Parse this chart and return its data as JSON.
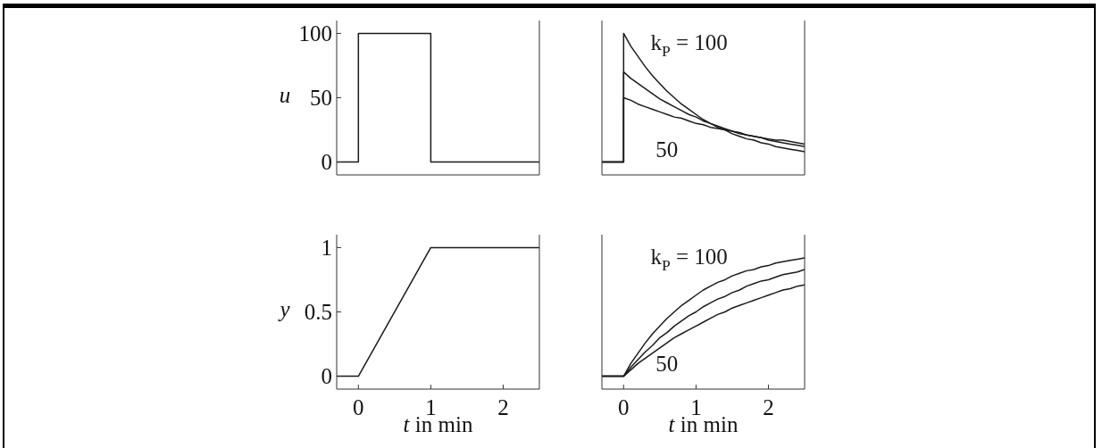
{
  "chart_data": [
    {
      "type": "step",
      "ylabel": "u",
      "x": [
        -0.3,
        0,
        1,
        2.5
      ],
      "series": [
        {
          "color": "#1a1a1a",
          "values": [
            0,
            100,
            0,
            0
          ]
        }
      ],
      "xlim": [
        -0.3,
        2.5
      ],
      "xticks": [
        0,
        1,
        2
      ],
      "ylim": [
        -10,
        110
      ],
      "yticks": [
        0,
        50,
        100
      ],
      "tick_labels": "y"
    },
    {
      "type": "line",
      "tick_labels": false,
      "xlim": [
        -0.3,
        2.5
      ],
      "xticks": [
        0,
        1,
        2
      ],
      "ylim": [
        -10,
        110
      ],
      "yticks": [
        0,
        50,
        100
      ],
      "series": [
        {
          "name": "k$_{P}$ = 100",
          "color": "#1a1a1a",
          "x": [
            -0.3,
            0,
            0,
            0.1,
            0.2,
            0.3,
            0.4,
            0.5,
            0.6,
            0.7,
            0.8,
            0.9,
            1,
            1.1,
            1.2,
            1.3,
            1.4,
            1.5,
            1.6,
            1.7,
            1.8,
            1.9,
            2,
            2.1,
            2.2,
            2.3,
            2.4,
            2.5
          ],
          "values": [
            0,
            0,
            100,
            90,
            82,
            74,
            67,
            61,
            55,
            50,
            45,
            41,
            37,
            33,
            30,
            27,
            25,
            22,
            20,
            18,
            17,
            15,
            14,
            12,
            11,
            10,
            9,
            8
          ]
        },
        {
          "color": "#1a1a1a",
          "x": [
            -0.3,
            0,
            0,
            0.1,
            0.2,
            0.3,
            0.4,
            0.5,
            0.6,
            0.7,
            0.8,
            0.9,
            1,
            1.1,
            1.2,
            1.3,
            1.4,
            1.5,
            1.6,
            1.7,
            1.8,
            1.9,
            2,
            2.1,
            2.2,
            2.3,
            2.4,
            2.5
          ],
          "values": [
            0,
            0,
            70,
            65,
            61,
            57,
            53,
            49,
            46,
            43,
            40,
            37,
            35,
            32,
            30,
            28,
            26,
            24,
            23,
            21,
            20,
            19,
            17,
            16,
            15,
            14,
            13,
            12
          ]
        },
        {
          "name": "50",
          "color": "#1a1a1a",
          "x": [
            -0.3,
            0,
            0,
            0.1,
            0.2,
            0.3,
            0.4,
            0.5,
            0.6,
            0.7,
            0.8,
            0.9,
            1,
            1.1,
            1.2,
            1.3,
            1.4,
            1.5,
            1.6,
            1.7,
            1.8,
            1.9,
            2,
            2.1,
            2.2,
            2.3,
            2.4,
            2.5
          ],
          "values": [
            0,
            0,
            50,
            48,
            45,
            43,
            41,
            39,
            37,
            35,
            34,
            32,
            30,
            29,
            27,
            26,
            25,
            24,
            22,
            21,
            20,
            19,
            18,
            17,
            17,
            16,
            15,
            14
          ]
        }
      ]
    },
    {
      "type": "line",
      "ylabel": "y",
      "xlabel": "t in min",
      "x": [
        -0.3,
        0,
        1,
        2.5
      ],
      "series": [
        {
          "color": "#1a1a1a",
          "values": [
            0,
            0,
            1,
            1
          ]
        }
      ],
      "xlim": [
        -0.3,
        2.5
      ],
      "xticks": [
        0,
        1,
        2
      ],
      "ylim": [
        -0.1,
        1.1
      ],
      "yticks": [
        0,
        0.5,
        1
      ]
    },
    {
      "type": "line",
      "xlabel": "t in min",
      "tick_labels": "x",
      "xlim": [
        -0.3,
        2.5
      ],
      "xticks": [
        0,
        1,
        2
      ],
      "ylim": [
        -0.1,
        1.1
      ],
      "yticks": [
        0,
        0.5,
        1
      ],
      "x": [
        -0.3,
        0,
        0.1,
        0.2,
        0.3,
        0.4,
        0.5,
        0.6,
        0.7,
        0.8,
        0.9,
        1,
        1.1,
        1.2,
        1.3,
        1.4,
        1.5,
        1.6,
        1.7,
        1.8,
        1.9,
        2,
        2.1,
        2.2,
        2.3,
        2.4,
        2.5
      ],
      "series": [
        {
          "name": "k$_{P}$ = 100",
          "color": "#1a1a1a",
          "values": [
            0,
            0,
            0.1,
            0.18,
            0.26,
            0.33,
            0.39,
            0.45,
            0.5,
            0.55,
            0.59,
            0.63,
            0.67,
            0.7,
            0.73,
            0.75,
            0.78,
            0.8,
            0.82,
            0.83,
            0.85,
            0.86,
            0.88,
            0.89,
            0.9,
            0.91,
            0.92
          ]
        },
        {
          "color": "#1a1a1a",
          "values": [
            0,
            0,
            0.07,
            0.13,
            0.19,
            0.24,
            0.3,
            0.34,
            0.39,
            0.43,
            0.47,
            0.5,
            0.54,
            0.57,
            0.6,
            0.62,
            0.65,
            0.67,
            0.7,
            0.72,
            0.74,
            0.75,
            0.77,
            0.79,
            0.8,
            0.81,
            0.83
          ]
        },
        {
          "name": "50",
          "color": "#1a1a1a",
          "values": [
            0,
            0,
            0.05,
            0.1,
            0.14,
            0.18,
            0.22,
            0.26,
            0.3,
            0.33,
            0.36,
            0.39,
            0.42,
            0.45,
            0.48,
            0.5,
            0.53,
            0.55,
            0.57,
            0.59,
            0.61,
            0.63,
            0.65,
            0.67,
            0.68,
            0.7,
            0.71
          ]
        }
      ]
    }
  ]
}
